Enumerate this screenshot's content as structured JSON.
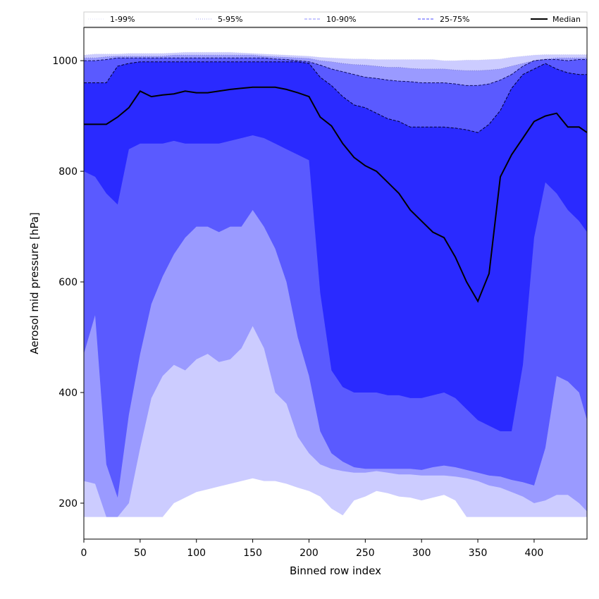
{
  "chart_data": {
    "type": "area",
    "title": "",
    "xlabel": "Binned row index",
    "ylabel": "Aerosol mid pressure [hPa]",
    "xlim": [
      0,
      447
    ],
    "ylim": [
      135,
      1060
    ],
    "xticks": [
      0,
      50,
      100,
      150,
      200,
      250,
      300,
      350,
      400
    ],
    "yticks": [
      200,
      400,
      600,
      800,
      1000
    ],
    "legend_position": "top",
    "legend": [
      {
        "label": "1-99%",
        "style": "dotted",
        "color": "#e0e0f8"
      },
      {
        "label": "5-95%",
        "style": "dotted",
        "color": "#a8a8f0"
      },
      {
        "label": "10-90%",
        "style": "dashed",
        "color": "#8f8fff"
      },
      {
        "label": "25-75%",
        "style": "dashed",
        "color": "#4b4bff"
      },
      {
        "label": "Median",
        "style": "solid",
        "color": "#000000"
      }
    ],
    "colors": {
      "band_1_99": "#ccccff",
      "band_5_95": "#9a9aff",
      "band_10_90": "#5a5aff",
      "band_25_75": "#2a2aff",
      "median": "#000000"
    },
    "x": [
      0,
      10,
      20,
      30,
      40,
      50,
      60,
      70,
      80,
      90,
      100,
      110,
      120,
      130,
      140,
      150,
      160,
      170,
      180,
      190,
      200,
      210,
      220,
      230,
      240,
      250,
      260,
      270,
      280,
      290,
      300,
      310,
      320,
      330,
      340,
      350,
      360,
      370,
      380,
      390,
      400,
      410,
      420,
      430,
      440,
      447
    ],
    "series": [
      {
        "name": "p1",
        "values": [
          175,
          175,
          175,
          175,
          175,
          175,
          175,
          175,
          200,
          210,
          220,
          225,
          230,
          235,
          240,
          245,
          240,
          240,
          235,
          228,
          222,
          212,
          190,
          178,
          205,
          212,
          222,
          218,
          212,
          210,
          205,
          210,
          215,
          205,
          175,
          175,
          175,
          175,
          175,
          175,
          175,
          175,
          175,
          175,
          175,
          175
        ]
      },
      {
        "name": "p5",
        "values": [
          240,
          235,
          175,
          175,
          200,
          300,
          390,
          430,
          450,
          440,
          460,
          470,
          455,
          460,
          480,
          520,
          480,
          400,
          380,
          320,
          290,
          270,
          262,
          258,
          255,
          255,
          258,
          255,
          252,
          252,
          250,
          250,
          250,
          248,
          245,
          240,
          232,
          228,
          220,
          212,
          200,
          205,
          215,
          215,
          200,
          185
        ]
      },
      {
        "name": "p10",
        "values": [
          470,
          540,
          270,
          210,
          360,
          470,
          560,
          610,
          650,
          680,
          700,
          700,
          690,
          700,
          700,
          730,
          700,
          660,
          600,
          500,
          430,
          330,
          290,
          275,
          265,
          262,
          262,
          262,
          262,
          262,
          260,
          265,
          268,
          265,
          260,
          255,
          250,
          248,
          242,
          238,
          232,
          300,
          430,
          420,
          400,
          350
        ]
      },
      {
        "name": "p25",
        "values": [
          800,
          790,
          760,
          740,
          840,
          850,
          850,
          850,
          855,
          850,
          850,
          850,
          850,
          855,
          860,
          865,
          860,
          850,
          840,
          830,
          820,
          580,
          440,
          410,
          400,
          400,
          400,
          395,
          395,
          390,
          390,
          395,
          400,
          390,
          370,
          350,
          340,
          330,
          330,
          450,
          680,
          780,
          760,
          730,
          710,
          690
        ]
      },
      {
        "name": "p50",
        "values": [
          885,
          885,
          885,
          898,
          915,
          945,
          935,
          938,
          940,
          945,
          942,
          942,
          945,
          948,
          950,
          952,
          952,
          952,
          948,
          942,
          935,
          898,
          882,
          850,
          825,
          810,
          800,
          780,
          760,
          730,
          710,
          690,
          680,
          645,
          600,
          565,
          615,
          790,
          830,
          860,
          890,
          900,
          905,
          880,
          880,
          870
        ]
      },
      {
        "name": "p75",
        "values": [
          960,
          960,
          960,
          990,
          995,
          998,
          998,
          998,
          998,
          998,
          998,
          998,
          998,
          998,
          998,
          998,
          998,
          998,
          998,
          998,
          995,
          970,
          955,
          935,
          920,
          915,
          905,
          895,
          890,
          880,
          880,
          880,
          880,
          878,
          875,
          870,
          885,
          910,
          950,
          975,
          985,
          995,
          985,
          978,
          975,
          975
        ]
      },
      {
        "name": "p90",
        "values": [
          1000,
          1000,
          1002,
          1005,
          1005,
          1005,
          1005,
          1005,
          1005,
          1005,
          1005,
          1005,
          1005,
          1005,
          1005,
          1005,
          1005,
          1003,
          1002,
          1000,
          998,
          992,
          985,
          980,
          975,
          970,
          968,
          965,
          963,
          962,
          960,
          960,
          960,
          958,
          955,
          955,
          958,
          965,
          975,
          990,
          1000,
          1002,
          1002,
          1000,
          1002,
          1002
        ]
      },
      {
        "name": "p95",
        "values": [
          1005,
          1005,
          1007,
          1008,
          1008,
          1008,
          1008,
          1008,
          1010,
          1010,
          1010,
          1010,
          1010,
          1010,
          1010,
          1010,
          1008,
          1007,
          1006,
          1005,
          1004,
          1000,
          998,
          995,
          993,
          992,
          990,
          988,
          988,
          986,
          985,
          985,
          985,
          983,
          982,
          982,
          983,
          985,
          990,
          995,
          1000,
          1003,
          1005,
          1005,
          1005,
          1005
        ]
      },
      {
        "name": "p99",
        "values": [
          1010,
          1012,
          1012,
          1012,
          1013,
          1013,
          1013,
          1013,
          1014,
          1015,
          1015,
          1015,
          1015,
          1015,
          1014,
          1013,
          1012,
          1011,
          1010,
          1009,
          1008,
          1006,
          1005,
          1004,
          1003,
          1003,
          1002,
          1002,
          1002,
          1002,
          1002,
          1002,
          1000,
          1000,
          1001,
          1001,
          1002,
          1003,
          1006,
          1008,
          1010,
          1011,
          1011,
          1011,
          1011,
          1011
        ]
      }
    ]
  }
}
